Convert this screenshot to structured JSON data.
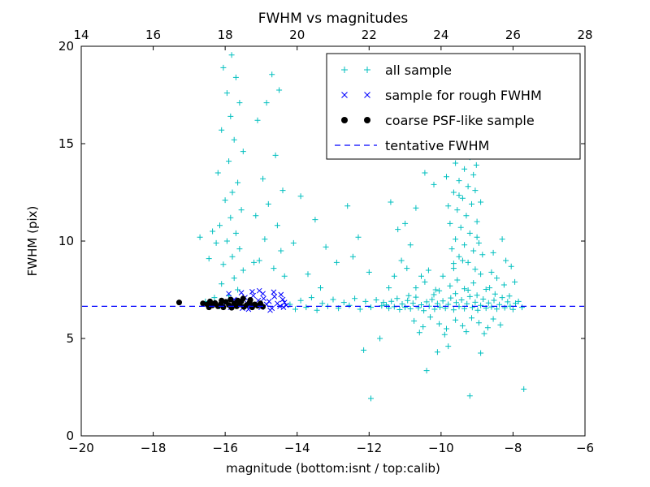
{
  "chart_data": {
    "type": "scatter",
    "title": "FWHM vs magnitudes",
    "xlabel": "magnitude (bottom:isnt / top:calib)",
    "ylabel": "FWHM (pix)",
    "xlim": [
      -20,
      -6
    ],
    "ylim": [
      0,
      20
    ],
    "top_xlim": [
      14,
      28
    ],
    "x_ticks": [
      -20,
      -18,
      -16,
      -14,
      -12,
      -10,
      -8,
      -6
    ],
    "x_tick_labels": [
      "−20",
      "−18",
      "−16",
      "−14",
      "−12",
      "−10",
      "−8",
      "−6"
    ],
    "top_ticks": [
      14,
      16,
      18,
      20,
      22,
      24,
      26,
      28
    ],
    "top_tick_labels": [
      "14",
      "16",
      "18",
      "20",
      "22",
      "24",
      "26",
      "28"
    ],
    "y_ticks": [
      0,
      5,
      10,
      15,
      20
    ],
    "y_tick_labels": [
      "0",
      "5",
      "10",
      "15",
      "20"
    ],
    "grid": false,
    "legend_position": "upper right",
    "colors": {
      "all_sample": "#00bfbf",
      "rough_fwhm": "#0000ff",
      "psf_like": "#000000",
      "tentative_line": "#0000ff"
    },
    "series": [
      {
        "name": "all sample",
        "marker": "plus",
        "color": "#00bfbf",
        "points": [
          [
            -15.82,
            19.55
          ],
          [
            -16.05,
            18.9
          ],
          [
            -15.7,
            18.4
          ],
          [
            -15.95,
            17.6
          ],
          [
            -15.6,
            17.1
          ],
          [
            -15.85,
            16.4
          ],
          [
            -16.1,
            15.7
          ],
          [
            -15.75,
            15.2
          ],
          [
            -15.5,
            14.6
          ],
          [
            -15.9,
            14.1
          ],
          [
            -16.2,
            13.5
          ],
          [
            -15.65,
            13.0
          ],
          [
            -15.8,
            12.5
          ],
          [
            -16.0,
            12.1
          ],
          [
            -15.55,
            11.6
          ],
          [
            -15.85,
            11.2
          ],
          [
            -16.15,
            10.8
          ],
          [
            -15.7,
            10.4
          ],
          [
            -15.95,
            10.0
          ],
          [
            -15.6,
            9.6
          ],
          [
            -15.8,
            9.2
          ],
          [
            -16.05,
            8.8
          ],
          [
            -15.5,
            8.5
          ],
          [
            -15.75,
            8.1
          ],
          [
            -16.1,
            7.8
          ],
          [
            -15.65,
            7.5
          ],
          [
            -15.9,
            7.2
          ],
          [
            -16.25,
            9.9
          ],
          [
            -16.35,
            10.5
          ],
          [
            -16.45,
            9.1
          ],
          [
            -16.7,
            10.2
          ],
          [
            -16.55,
            6.9
          ],
          [
            -16.3,
            7.1
          ],
          [
            -16.4,
            6.8
          ],
          [
            -16.15,
            6.65
          ],
          [
            -14.7,
            18.55
          ],
          [
            -14.5,
            17.75
          ],
          [
            -14.85,
            17.1
          ],
          [
            -15.1,
            16.2
          ],
          [
            -14.6,
            14.4
          ],
          [
            -14.95,
            13.2
          ],
          [
            -14.4,
            12.6
          ],
          [
            -14.8,
            11.9
          ],
          [
            -15.15,
            11.3
          ],
          [
            -14.55,
            10.8
          ],
          [
            -14.9,
            10.1
          ],
          [
            -14.45,
            9.5
          ],
          [
            -15.05,
            9.0
          ],
          [
            -14.65,
            8.6
          ],
          [
            -14.35,
            8.2
          ],
          [
            -15.2,
            8.9
          ],
          [
            -14.2,
            6.75
          ],
          [
            -14.05,
            6.5
          ],
          [
            -13.9,
            6.95
          ],
          [
            -13.75,
            6.6
          ],
          [
            -13.6,
            7.1
          ],
          [
            -13.45,
            6.45
          ],
          [
            -13.3,
            6.8
          ],
          [
            -13.15,
            6.65
          ],
          [
            -13.0,
            7.0
          ],
          [
            -12.85,
            6.55
          ],
          [
            -12.7,
            6.85
          ],
          [
            -12.55,
            6.7
          ],
          [
            -12.4,
            7.05
          ],
          [
            -12.25,
            6.5
          ],
          [
            -12.1,
            6.9
          ],
          [
            -11.95,
            6.6
          ],
          [
            -11.8,
            6.98
          ],
          [
            -11.65,
            6.68
          ],
          [
            -13.9,
            12.3
          ],
          [
            -13.5,
            11.1
          ],
          [
            -13.2,
            9.7
          ],
          [
            -12.9,
            8.9
          ],
          [
            -12.6,
            11.8
          ],
          [
            -12.3,
            10.2
          ],
          [
            -12.0,
            8.4
          ],
          [
            -13.7,
            8.3
          ],
          [
            -14.1,
            9.9
          ],
          [
            -12.45,
            9.2
          ],
          [
            -12.15,
            4.4
          ],
          [
            -11.7,
            5.0
          ],
          [
            -13.35,
            7.6
          ],
          [
            -11.52,
            6.72
          ],
          [
            -11.45,
            6.55
          ],
          [
            -11.38,
            6.91
          ],
          [
            -11.3,
            6.63
          ],
          [
            -11.22,
            7.05
          ],
          [
            -11.15,
            6.48
          ],
          [
            -11.08,
            6.77
          ],
          [
            -11.0,
            6.6
          ],
          [
            -10.93,
            6.95
          ],
          [
            -10.85,
            6.52
          ],
          [
            -10.78,
            6.81
          ],
          [
            -10.7,
            7.12
          ],
          [
            -10.63,
            6.58
          ],
          [
            -10.55,
            6.73
          ],
          [
            -10.48,
            6.43
          ],
          [
            -10.4,
            6.88
          ],
          [
            -10.33,
            6.66
          ],
          [
            -10.25,
            7.0
          ],
          [
            -10.18,
            6.5
          ],
          [
            -10.1,
            6.79
          ],
          [
            -10.03,
            6.61
          ],
          [
            -9.95,
            6.93
          ],
          [
            -9.88,
            6.55
          ],
          [
            -9.8,
            6.75
          ],
          [
            -9.73,
            7.08
          ],
          [
            -9.65,
            6.47
          ],
          [
            -9.58,
            6.84
          ],
          [
            -9.5,
            6.64
          ],
          [
            -9.43,
            6.98
          ],
          [
            -9.35,
            6.53
          ],
          [
            -9.28,
            6.78
          ],
          [
            -9.2,
            7.15
          ],
          [
            -9.13,
            6.59
          ],
          [
            -9.05,
            6.86
          ],
          [
            -8.98,
            6.45
          ],
          [
            -8.9,
            6.7
          ],
          [
            -8.83,
            7.02
          ],
          [
            -8.75,
            6.56
          ],
          [
            -8.68,
            6.82
          ],
          [
            -8.6,
            6.62
          ],
          [
            -8.53,
            6.96
          ],
          [
            -8.45,
            6.51
          ],
          [
            -8.38,
            6.74
          ],
          [
            -8.3,
            7.1
          ],
          [
            -8.23,
            6.58
          ],
          [
            -8.15,
            6.88
          ],
          [
            -8.08,
            6.66
          ],
          [
            -8.0,
            6.49
          ],
          [
            -7.93,
            6.8
          ],
          [
            -11.6,
            6.85
          ],
          [
            -10.9,
            7.2
          ],
          [
            -10.2,
            7.25
          ],
          [
            -9.6,
            7.3
          ],
          [
            -9.0,
            7.22
          ],
          [
            -8.5,
            7.28
          ],
          [
            -8.1,
            7.18
          ],
          [
            -10.75,
            5.9
          ],
          [
            -10.5,
            5.6
          ],
          [
            -10.3,
            6.1
          ],
          [
            -10.05,
            5.75
          ],
          [
            -9.85,
            5.5
          ],
          [
            -9.6,
            5.95
          ],
          [
            -9.4,
            5.65
          ],
          [
            -9.15,
            6.05
          ],
          [
            -8.95,
            5.8
          ],
          [
            -8.7,
            5.55
          ],
          [
            -8.55,
            6.0
          ],
          [
            -8.35,
            5.7
          ],
          [
            -9.9,
            5.2
          ],
          [
            -9.3,
            5.35
          ],
          [
            -10.6,
            5.3
          ],
          [
            -8.8,
            5.25
          ],
          [
            -10.7,
            7.6
          ],
          [
            -10.45,
            7.9
          ],
          [
            -10.15,
            7.5
          ],
          [
            -9.95,
            8.2
          ],
          [
            -9.75,
            7.7
          ],
          [
            -9.55,
            8.0
          ],
          [
            -9.35,
            7.55
          ],
          [
            -9.1,
            7.85
          ],
          [
            -8.9,
            8.3
          ],
          [
            -8.65,
            7.6
          ],
          [
            -8.45,
            8.1
          ],
          [
            -8.25,
            7.75
          ],
          [
            -10.35,
            8.5
          ],
          [
            -9.65,
            8.6
          ],
          [
            -9.05,
            8.55
          ],
          [
            -8.6,
            8.4
          ],
          [
            -10.05,
            7.45
          ],
          [
            -9.25,
            7.48
          ],
          [
            -8.75,
            7.52
          ],
          [
            -10.55,
            8.2
          ],
          [
            -9.55,
            15.3
          ],
          [
            -9.3,
            15.0
          ],
          [
            -9.45,
            14.6
          ],
          [
            -9.2,
            14.3
          ],
          [
            -9.6,
            14.0
          ],
          [
            -9.35,
            13.7
          ],
          [
            -9.1,
            13.4
          ],
          [
            -9.5,
            13.1
          ],
          [
            -9.25,
            12.8
          ],
          [
            -9.65,
            12.5
          ],
          [
            -9.4,
            12.2
          ],
          [
            -9.15,
            11.9
          ],
          [
            -9.55,
            11.6
          ],
          [
            -9.3,
            11.3
          ],
          [
            -9.0,
            11.0
          ],
          [
            -9.45,
            10.7
          ],
          [
            -9.2,
            10.4
          ],
          [
            -9.6,
            10.1
          ],
          [
            -9.35,
            9.8
          ],
          [
            -9.1,
            9.5
          ],
          [
            -9.5,
            9.2
          ],
          [
            -9.25,
            8.9
          ],
          [
            -9.7,
            9.6
          ],
          [
            -8.95,
            9.9
          ],
          [
            -9.75,
            10.9
          ],
          [
            -8.9,
            12.0
          ],
          [
            -9.05,
            12.6
          ],
          [
            -9.8,
            11.8
          ],
          [
            -9.0,
            10.2
          ],
          [
            -9.4,
            9.0
          ],
          [
            -9.85,
            13.3
          ],
          [
            -9.15,
            14.9
          ],
          [
            -8.85,
            9.3
          ],
          [
            -9.65,
            8.85
          ],
          [
            -9.02,
            13.9
          ],
          [
            -9.5,
            12.35
          ],
          [
            -8.55,
            9.4
          ],
          [
            -8.3,
            10.1
          ],
          [
            -8.2,
            9.0
          ],
          [
            -8.05,
            8.7
          ],
          [
            -7.95,
            7.9
          ],
          [
            -7.85,
            6.9
          ],
          [
            -7.75,
            6.6
          ],
          [
            -11.3,
            8.2
          ],
          [
            -11.1,
            9.0
          ],
          [
            -10.95,
            8.6
          ],
          [
            -11.45,
            7.6
          ],
          [
            -10.85,
            9.8
          ],
          [
            -11.0,
            10.9
          ],
          [
            -11.4,
            12.0
          ],
          [
            -11.2,
            10.6
          ],
          [
            -10.45,
            13.5
          ],
          [
            -10.2,
            12.9
          ],
          [
            -10.7,
            11.7
          ],
          [
            -11.95,
            1.92
          ],
          [
            -9.2,
            2.05
          ],
          [
            -10.4,
            3.35
          ],
          [
            -8.9,
            4.25
          ],
          [
            -9.8,
            4.6
          ],
          [
            -10.1,
            4.3
          ],
          [
            -7.7,
            2.4
          ]
        ]
      },
      {
        "name": "sample for rough FWHM",
        "marker": "x",
        "color": "#0000ff",
        "points": [
          [
            -16.05,
            6.7
          ],
          [
            -15.95,
            6.85
          ],
          [
            -15.85,
            6.6
          ],
          [
            -15.75,
            7.0
          ],
          [
            -15.68,
            6.75
          ],
          [
            -15.6,
            6.9
          ],
          [
            -15.52,
            6.55
          ],
          [
            -15.45,
            7.1
          ],
          [
            -15.38,
            6.8
          ],
          [
            -15.3,
            6.65
          ],
          [
            -15.22,
            7.2
          ],
          [
            -15.15,
            6.7
          ],
          [
            -15.08,
            6.95
          ],
          [
            -15.0,
            6.6
          ],
          [
            -14.93,
            7.05
          ],
          [
            -14.85,
            6.75
          ],
          [
            -14.78,
            6.9
          ],
          [
            -14.7,
            6.55
          ],
          [
            -14.63,
            7.15
          ],
          [
            -14.55,
            6.8
          ],
          [
            -14.48,
            6.65
          ],
          [
            -14.4,
            7.0
          ],
          [
            -14.35,
            6.85
          ],
          [
            -14.3,
            6.7
          ],
          [
            -15.55,
            7.35
          ],
          [
            -15.25,
            7.4
          ],
          [
            -14.95,
            7.3
          ],
          [
            -14.65,
            7.38
          ],
          [
            -14.45,
            7.25
          ],
          [
            -15.05,
            7.45
          ],
          [
            -14.75,
            6.45
          ],
          [
            -15.35,
            6.5
          ],
          [
            -14.38,
            6.6
          ],
          [
            -15.9,
            7.3
          ]
        ]
      },
      {
        "name": "coarse PSF-like sample",
        "marker": "dot",
        "color": "#000000",
        "points": [
          [
            -17.28,
            6.85
          ],
          [
            -16.62,
            6.8
          ],
          [
            -16.5,
            6.75
          ],
          [
            -16.42,
            6.9
          ],
          [
            -16.35,
            6.7
          ],
          [
            -16.28,
            6.82
          ],
          [
            -16.2,
            6.65
          ],
          [
            -16.12,
            6.78
          ],
          [
            -16.05,
            6.6
          ],
          [
            -15.98,
            6.88
          ],
          [
            -15.9,
            6.72
          ],
          [
            -15.82,
            6.58
          ],
          [
            -15.75,
            6.8
          ],
          [
            -15.68,
            6.65
          ],
          [
            -15.6,
            6.75
          ],
          [
            -15.55,
            6.9
          ],
          [
            -15.48,
            6.62
          ],
          [
            -15.4,
            6.72
          ],
          [
            -15.32,
            6.85
          ],
          [
            -15.25,
            6.6
          ],
          [
            -15.18,
            6.75
          ],
          [
            -15.1,
            6.68
          ],
          [
            -15.02,
            6.8
          ],
          [
            -14.95,
            6.63
          ],
          [
            -15.65,
            6.95
          ],
          [
            -15.85,
            7.0
          ],
          [
            -16.1,
            6.95
          ],
          [
            -15.3,
            6.98
          ],
          [
            -15.5,
            7.05
          ],
          [
            -16.45,
            6.6
          ]
        ]
      },
      {
        "name": "tentative FWHM",
        "marker": "dashed-line",
        "color": "#0000ff",
        "y": 6.65
      }
    ]
  }
}
